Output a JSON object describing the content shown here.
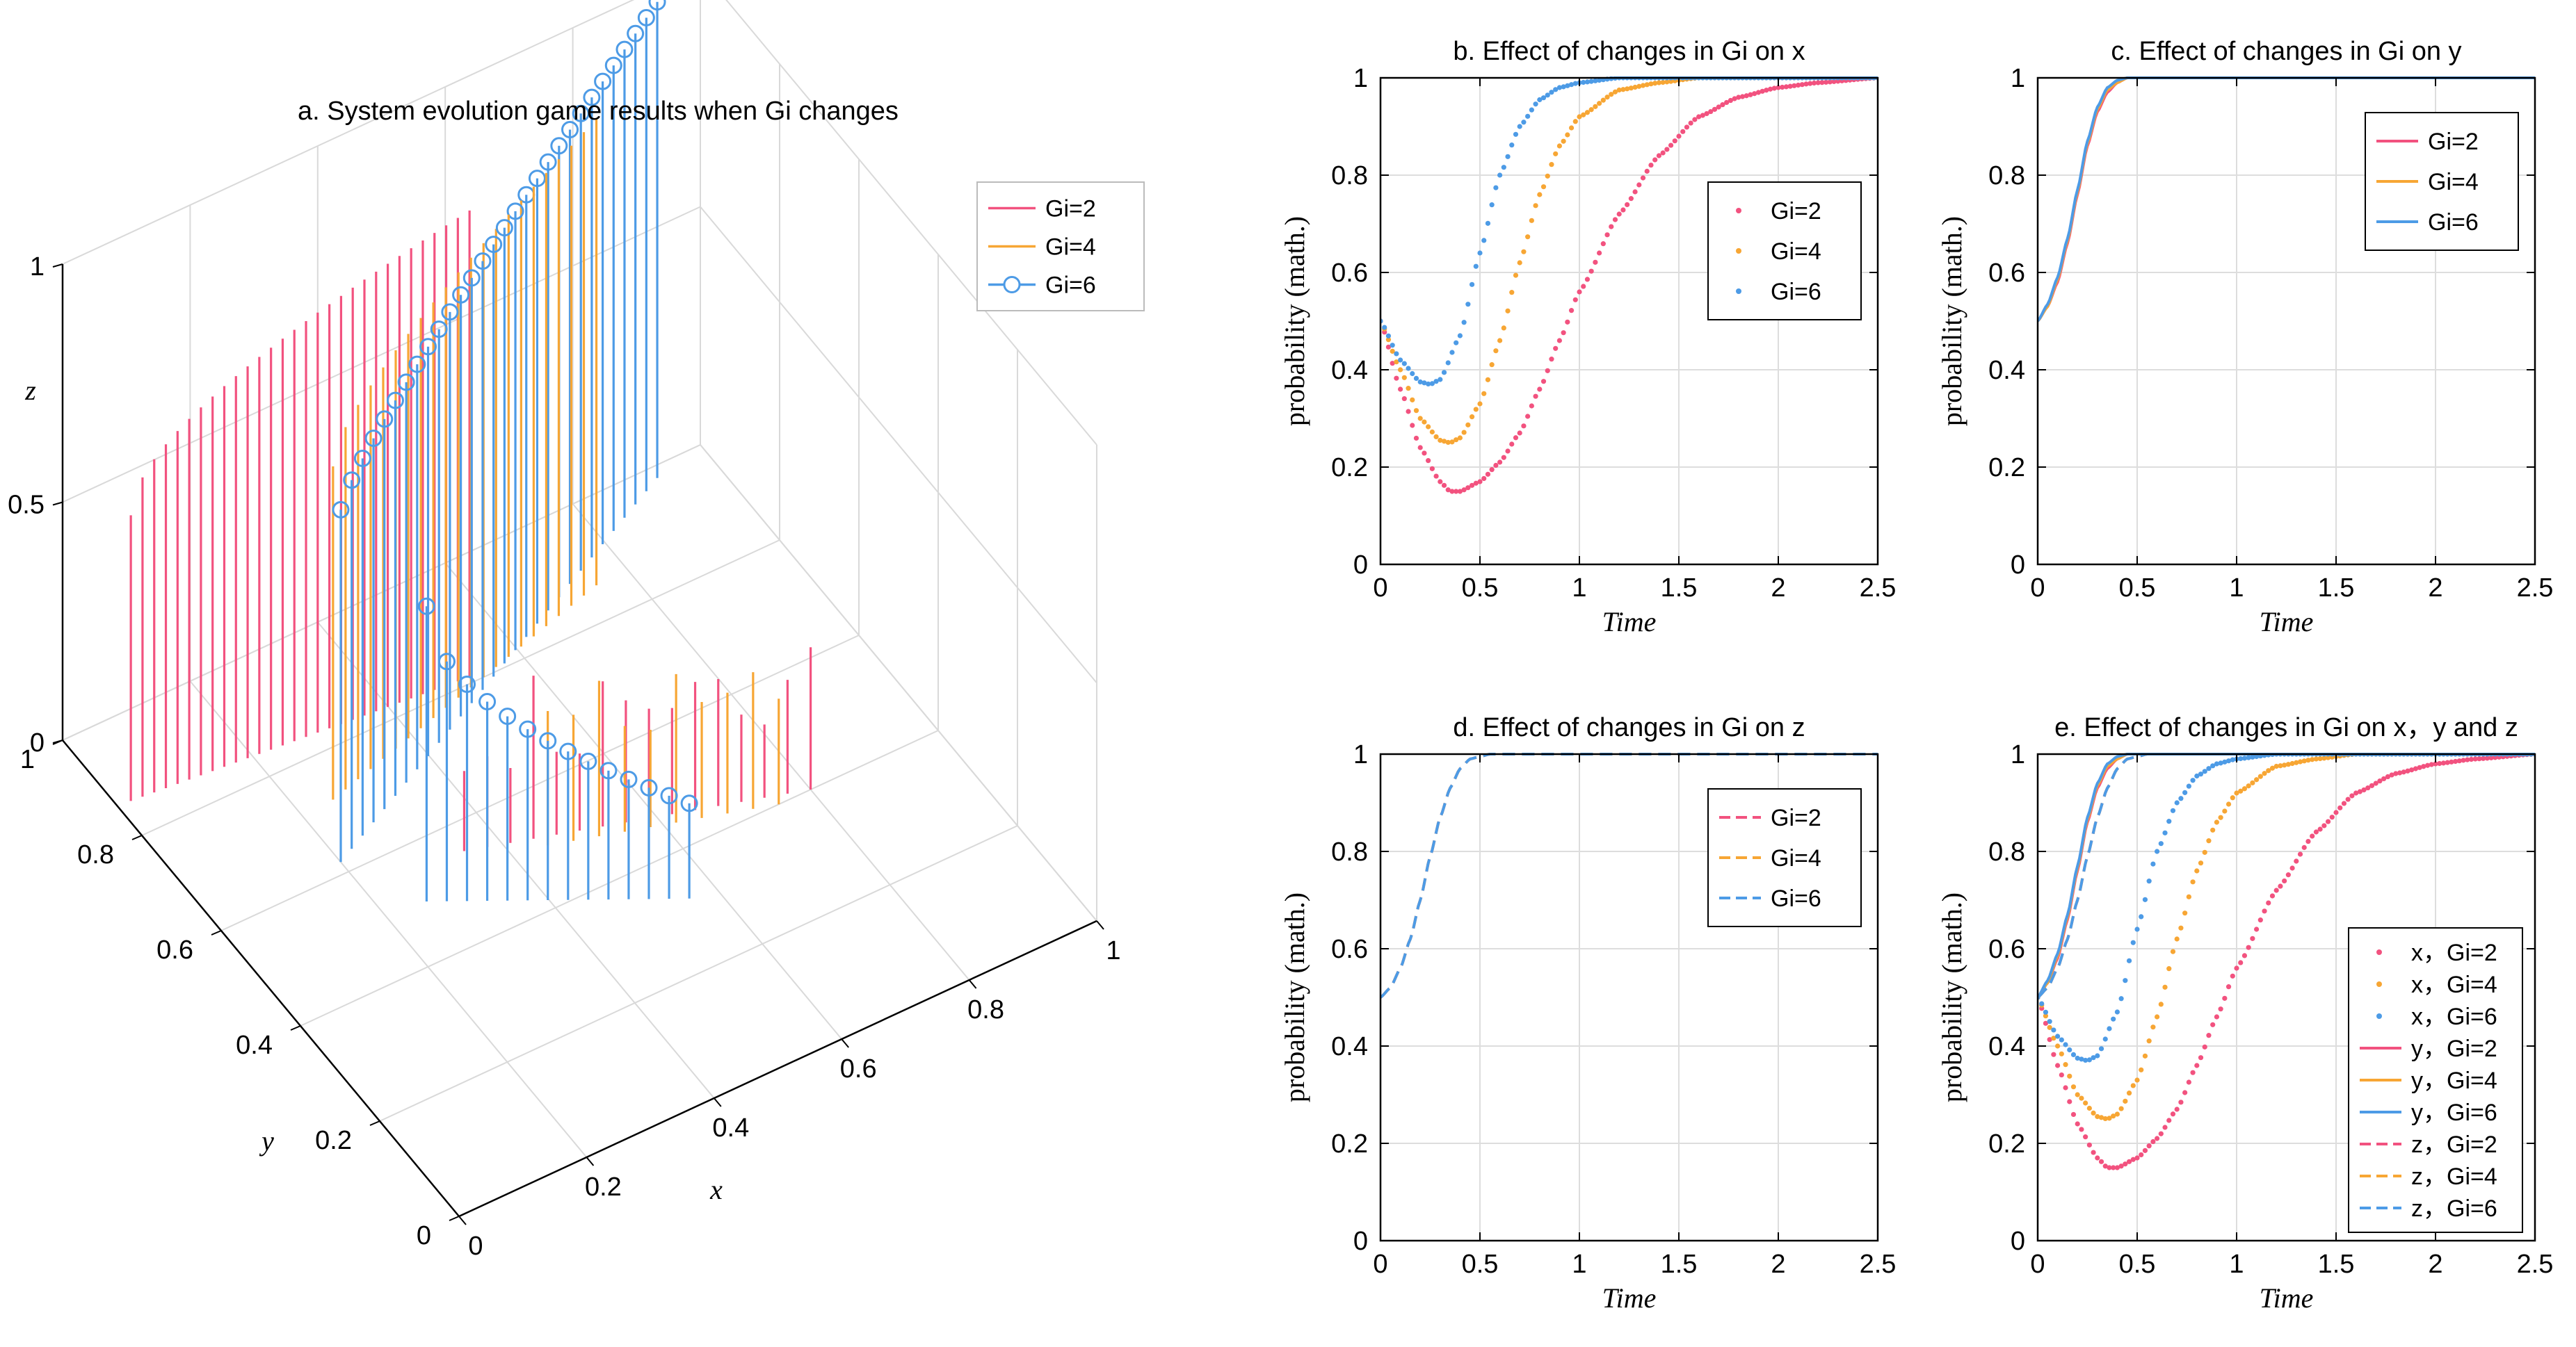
{
  "colors": {
    "gi2": "#f2527f",
    "gi4": "#f7a634",
    "gi6": "#4d9be6",
    "axis": "#000000",
    "grid": "#dddddd"
  },
  "chart_data": [
    {
      "id": "a",
      "type": "stem3d",
      "title": "a. System evolution game results when Gi changes",
      "xlabel": "x",
      "ylabel": "y",
      "zlabel": "z",
      "xticks": [
        "0",
        "0.2",
        "0.4",
        "0.6",
        "0.8",
        "1"
      ],
      "yticks": [
        "0",
        "0.2",
        "0.4",
        "0.6",
        "0.8",
        "1"
      ],
      "zticks": [
        "0",
        "0.5",
        "1"
      ],
      "xlim": [
        0,
        1
      ],
      "ylim": [
        0,
        1
      ],
      "zlim": [
        0,
        1
      ],
      "legend": [
        "Gi=2",
        "Gi=4",
        "Gi=6"
      ],
      "legend_position": "top-right"
    },
    {
      "id": "b",
      "type": "scatter",
      "title": "b. Effect of changes in Gi on x",
      "xlabel": "Time",
      "ylabel": "probability (math.)",
      "xlim": [
        0,
        2.5
      ],
      "ylim": [
        0,
        1
      ],
      "xticks": [
        "0",
        "0.5",
        "1",
        "1.5",
        "2",
        "2.5"
      ],
      "yticks": [
        "0",
        "0.2",
        "0.4",
        "0.6",
        "0.8",
        "1"
      ],
      "legend": [
        "Gi=2",
        "Gi=4",
        "Gi=6"
      ],
      "legend_position": "right",
      "series": [
        {
          "name": "Gi=2",
          "x": [
            0,
            0.1,
            0.2,
            0.3,
            0.35,
            0.4,
            0.5,
            0.6,
            0.7,
            0.8,
            0.9,
            1.0,
            1.2,
            1.4,
            1.6,
            1.8,
            2.0,
            2.2,
            2.5
          ],
          "values": [
            0.5,
            0.36,
            0.24,
            0.17,
            0.15,
            0.15,
            0.17,
            0.21,
            0.27,
            0.36,
            0.46,
            0.56,
            0.72,
            0.84,
            0.92,
            0.96,
            0.98,
            0.99,
            1.0
          ]
        },
        {
          "name": "Gi=4",
          "x": [
            0,
            0.1,
            0.2,
            0.3,
            0.35,
            0.4,
            0.5,
            0.6,
            0.7,
            0.8,
            0.9,
            1.0,
            1.2,
            1.4,
            1.6,
            1.8,
            2.0,
            2.5
          ],
          "values": [
            0.5,
            0.4,
            0.3,
            0.255,
            0.25,
            0.26,
            0.33,
            0.46,
            0.62,
            0.76,
            0.86,
            0.92,
            0.975,
            0.99,
            1.0,
            1.0,
            1.0,
            1.0
          ]
        },
        {
          "name": "Gi=6",
          "x": [
            0,
            0.1,
            0.2,
            0.25,
            0.3,
            0.4,
            0.5,
            0.6,
            0.7,
            0.8,
            0.9,
            1.0,
            1.2,
            1.5,
            2.0,
            2.5
          ],
          "values": [
            0.5,
            0.42,
            0.375,
            0.37,
            0.38,
            0.47,
            0.64,
            0.8,
            0.9,
            0.955,
            0.98,
            0.99,
            1.0,
            1.0,
            1.0,
            1.0
          ]
        }
      ]
    },
    {
      "id": "c",
      "type": "line",
      "title": "c. Effect of changes in Gi on y",
      "xlabel": "Time",
      "ylabel": "probability (math.)",
      "xlim": [
        0,
        2.5
      ],
      "ylim": [
        0,
        1
      ],
      "xticks": [
        "0",
        "0.5",
        "1",
        "1.5",
        "2",
        "2.5"
      ],
      "yticks": [
        "0",
        "0.2",
        "0.4",
        "0.6",
        "0.8",
        "1"
      ],
      "legend": [
        "Gi=2",
        "Gi=4",
        "Gi=6"
      ],
      "legend_position": "top-right",
      "series": [
        {
          "name": "Gi=2",
          "dash": "solid",
          "x": [
            0,
            0.05,
            0.1,
            0.15,
            0.2,
            0.25,
            0.3,
            0.35,
            0.4,
            0.45,
            0.5,
            1.0,
            2.5
          ],
          "values": [
            0.5,
            0.53,
            0.58,
            0.66,
            0.76,
            0.86,
            0.93,
            0.97,
            0.99,
            1.0,
            1.0,
            1.0,
            1.0
          ]
        },
        {
          "name": "Gi=4",
          "dash": "solid",
          "x": [
            0,
            0.05,
            0.1,
            0.15,
            0.2,
            0.25,
            0.3,
            0.35,
            0.4,
            0.45,
            0.5,
            1.0,
            2.5
          ],
          "values": [
            0.5,
            0.53,
            0.585,
            0.665,
            0.765,
            0.865,
            0.935,
            0.975,
            0.99,
            1.0,
            1.0,
            1.0,
            1.0
          ]
        },
        {
          "name": "Gi=6",
          "dash": "solid",
          "x": [
            0,
            0.05,
            0.1,
            0.15,
            0.2,
            0.25,
            0.3,
            0.35,
            0.4,
            0.45,
            0.5,
            1.0,
            2.5
          ],
          "values": [
            0.5,
            0.535,
            0.59,
            0.67,
            0.77,
            0.87,
            0.94,
            0.98,
            0.995,
            1.0,
            1.0,
            1.0,
            1.0
          ]
        }
      ]
    },
    {
      "id": "d",
      "type": "line",
      "title": "d. Effect of changes in Gi on z",
      "xlabel": "Time",
      "ylabel": "probability (math.)",
      "xlim": [
        0,
        2.5
      ],
      "ylim": [
        0,
        1
      ],
      "xticks": [
        "0",
        "0.5",
        "1",
        "1.5",
        "2",
        "2.5"
      ],
      "yticks": [
        "0",
        "0.2",
        "0.4",
        "0.6",
        "0.8",
        "1"
      ],
      "legend": [
        "Gi=2",
        "Gi=4",
        "Gi=6"
      ],
      "legend_position": "top-right",
      "series": [
        {
          "name": "Gi=2",
          "dash": "dashed",
          "x": [
            0,
            0.05,
            0.1,
            0.15,
            0.2,
            0.25,
            0.3,
            0.35,
            0.4,
            0.45,
            0.5,
            0.55,
            0.6,
            1.0,
            2.5
          ],
          "values": [
            0.5,
            0.52,
            0.56,
            0.62,
            0.7,
            0.79,
            0.87,
            0.93,
            0.97,
            0.99,
            0.995,
            1.0,
            1.0,
            1.0,
            1.0
          ]
        },
        {
          "name": "Gi=4",
          "dash": "dashed",
          "x": [
            0,
            0.05,
            0.1,
            0.15,
            0.2,
            0.25,
            0.3,
            0.35,
            0.4,
            0.45,
            0.5,
            0.55,
            0.6,
            1.0,
            2.5
          ],
          "values": [
            0.5,
            0.52,
            0.56,
            0.62,
            0.7,
            0.79,
            0.87,
            0.93,
            0.97,
            0.99,
            0.995,
            1.0,
            1.0,
            1.0,
            1.0
          ]
        },
        {
          "name": "Gi=6",
          "dash": "dashed",
          "x": [
            0,
            0.05,
            0.1,
            0.15,
            0.2,
            0.25,
            0.3,
            0.35,
            0.4,
            0.45,
            0.5,
            0.55,
            0.6,
            1.0,
            2.5
          ],
          "values": [
            0.5,
            0.52,
            0.56,
            0.62,
            0.7,
            0.79,
            0.87,
            0.93,
            0.97,
            0.99,
            0.995,
            1.0,
            1.0,
            1.0,
            1.0
          ]
        }
      ]
    },
    {
      "id": "e",
      "type": "line",
      "title": "e. Effect of changes in Gi on x，y and z",
      "xlabel": "Time",
      "ylabel": "probability (math.)",
      "xlim": [
        0,
        2.5
      ],
      "ylim": [
        0,
        1
      ],
      "xticks": [
        "0",
        "0.5",
        "1",
        "1.5",
        "2",
        "2.5"
      ],
      "yticks": [
        "0",
        "0.2",
        "0.4",
        "0.6",
        "0.8",
        "1"
      ],
      "legend": [
        "x，Gi=2",
        "x，Gi=4",
        "x，Gi=6",
        "y，Gi=2",
        "y，Gi=4",
        "y，Gi=6",
        "z，Gi=2",
        "z，Gi=4",
        "z，Gi=6"
      ],
      "legend_position": "bottom-right",
      "series": [
        {
          "name": "x，Gi=2",
          "dash": "dotted",
          "x": [
            0,
            0.1,
            0.2,
            0.3,
            0.35,
            0.4,
            0.5,
            0.6,
            0.7,
            0.8,
            0.9,
            1.0,
            1.2,
            1.4,
            1.6,
            1.8,
            2.0,
            2.2,
            2.5
          ],
          "values": [
            0.5,
            0.36,
            0.24,
            0.17,
            0.15,
            0.15,
            0.17,
            0.21,
            0.27,
            0.36,
            0.46,
            0.56,
            0.72,
            0.84,
            0.92,
            0.96,
            0.98,
            0.99,
            1.0
          ]
        },
        {
          "name": "x，Gi=4",
          "dash": "dotted",
          "x": [
            0,
            0.1,
            0.2,
            0.3,
            0.35,
            0.4,
            0.5,
            0.6,
            0.7,
            0.8,
            0.9,
            1.0,
            1.2,
            1.4,
            1.6,
            1.8,
            2.0,
            2.5
          ],
          "values": [
            0.5,
            0.4,
            0.3,
            0.255,
            0.25,
            0.26,
            0.33,
            0.46,
            0.62,
            0.76,
            0.86,
            0.92,
            0.975,
            0.99,
            1.0,
            1.0,
            1.0,
            1.0
          ]
        },
        {
          "name": "x，Gi=6",
          "dash": "dotted",
          "x": [
            0,
            0.1,
            0.2,
            0.25,
            0.3,
            0.4,
            0.5,
            0.6,
            0.7,
            0.8,
            0.9,
            1.0,
            1.2,
            1.5,
            2.0,
            2.5
          ],
          "values": [
            0.5,
            0.42,
            0.375,
            0.37,
            0.38,
            0.47,
            0.64,
            0.8,
            0.9,
            0.955,
            0.98,
            0.99,
            1.0,
            1.0,
            1.0,
            1.0
          ]
        },
        {
          "name": "y，Gi=2",
          "dash": "solid",
          "x": [
            0,
            0.05,
            0.1,
            0.15,
            0.2,
            0.25,
            0.3,
            0.35,
            0.4,
            0.45,
            0.5,
            1.0,
            2.5
          ],
          "values": [
            0.5,
            0.53,
            0.58,
            0.66,
            0.76,
            0.86,
            0.93,
            0.97,
            0.99,
            1.0,
            1.0,
            1.0,
            1.0
          ]
        },
        {
          "name": "y，Gi=4",
          "dash": "solid",
          "x": [
            0,
            0.05,
            0.1,
            0.15,
            0.2,
            0.25,
            0.3,
            0.35,
            0.4,
            0.45,
            0.5,
            1.0,
            2.5
          ],
          "values": [
            0.5,
            0.53,
            0.585,
            0.665,
            0.765,
            0.865,
            0.935,
            0.975,
            0.99,
            1.0,
            1.0,
            1.0,
            1.0
          ]
        },
        {
          "name": "y，Gi=6",
          "dash": "solid",
          "x": [
            0,
            0.05,
            0.1,
            0.15,
            0.2,
            0.25,
            0.3,
            0.35,
            0.4,
            0.45,
            0.5,
            1.0,
            2.5
          ],
          "values": [
            0.5,
            0.535,
            0.59,
            0.67,
            0.77,
            0.87,
            0.94,
            0.98,
            0.995,
            1.0,
            1.0,
            1.0,
            1.0
          ]
        },
        {
          "name": "z，Gi=2",
          "dash": "dashed",
          "x": [
            0,
            0.05,
            0.1,
            0.15,
            0.2,
            0.25,
            0.3,
            0.35,
            0.4,
            0.45,
            0.5,
            0.55,
            0.6,
            1.0,
            2.5
          ],
          "values": [
            0.5,
            0.52,
            0.56,
            0.62,
            0.7,
            0.79,
            0.87,
            0.93,
            0.97,
            0.99,
            0.995,
            1.0,
            1.0,
            1.0,
            1.0
          ]
        },
        {
          "name": "z，Gi=4",
          "dash": "dashed",
          "x": [
            0,
            0.05,
            0.1,
            0.15,
            0.2,
            0.25,
            0.3,
            0.35,
            0.4,
            0.45,
            0.5,
            0.55,
            0.6,
            1.0,
            2.5
          ],
          "values": [
            0.5,
            0.52,
            0.56,
            0.62,
            0.7,
            0.79,
            0.87,
            0.93,
            0.97,
            0.99,
            0.995,
            1.0,
            1.0,
            1.0,
            1.0
          ]
        },
        {
          "name": "z，Gi=6",
          "dash": "dashed",
          "x": [
            0,
            0.05,
            0.1,
            0.15,
            0.2,
            0.25,
            0.3,
            0.35,
            0.4,
            0.45,
            0.5,
            0.55,
            0.6,
            1.0,
            2.5
          ],
          "values": [
            0.5,
            0.52,
            0.56,
            0.62,
            0.7,
            0.79,
            0.87,
            0.93,
            0.97,
            0.99,
            0.995,
            1.0,
            1.0,
            1.0,
            1.0
          ]
        }
      ]
    }
  ]
}
